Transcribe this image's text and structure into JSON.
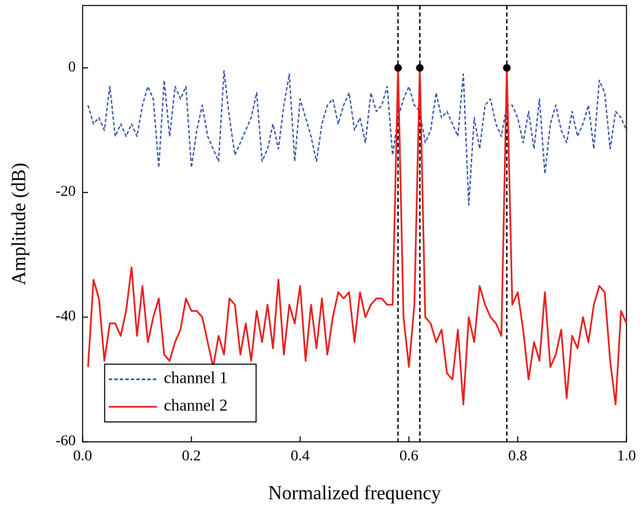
{
  "chart_data": {
    "type": "line",
    "xlabel": "Normalized frequency",
    "ylabel": "Amplitude (dB)",
    "x": [
      0.01,
      0.02,
      0.03,
      0.04,
      0.05,
      0.06,
      0.07,
      0.08,
      0.09,
      0.1,
      0.11,
      0.12,
      0.13,
      0.14,
      0.15,
      0.16,
      0.17,
      0.18,
      0.19,
      0.2,
      0.21,
      0.22,
      0.23,
      0.24,
      0.25,
      0.26,
      0.27,
      0.28,
      0.29,
      0.3,
      0.31,
      0.32,
      0.33,
      0.34,
      0.35,
      0.36,
      0.37,
      0.38,
      0.39,
      0.4,
      0.41,
      0.42,
      0.43,
      0.44,
      0.45,
      0.46,
      0.47,
      0.48,
      0.49,
      0.5,
      0.51,
      0.52,
      0.53,
      0.54,
      0.55,
      0.56,
      0.57,
      0.58,
      0.59,
      0.6,
      0.61,
      0.62,
      0.63,
      0.64,
      0.65,
      0.66,
      0.67,
      0.68,
      0.69,
      0.7,
      0.71,
      0.72,
      0.73,
      0.74,
      0.75,
      0.76,
      0.77,
      0.78,
      0.79,
      0.8,
      0.81,
      0.82,
      0.83,
      0.84,
      0.85,
      0.86,
      0.87,
      0.88,
      0.89,
      0.9,
      0.91,
      0.92,
      0.93,
      0.94,
      0.95,
      0.96,
      0.97,
      0.98,
      0.99,
      1.0
    ],
    "series": [
      {
        "name": "channel 1",
        "color": "#3b5aa8",
        "dashed": true,
        "values": [
          -6,
          -9,
          -8,
          -10,
          -3,
          -11,
          -9,
          -11,
          -9,
          -11,
          -6,
          -3,
          -5,
          -16,
          -2,
          -11,
          -3,
          -5,
          -3,
          -16,
          -10,
          -6,
          -11,
          -13,
          -15,
          -0.5,
          -8,
          -14,
          -12,
          -10,
          -8,
          -4,
          -15,
          -13,
          -9,
          -13,
          -6,
          -1,
          -15,
          -5,
          -8,
          -11,
          -15,
          -9,
          -6,
          -5,
          -9,
          -6,
          -4,
          -10,
          -8,
          -12,
          -4,
          -7,
          -6,
          -3,
          -14,
          -8,
          -5,
          -3,
          -6,
          -7,
          -12,
          -10,
          -4,
          -8,
          -7,
          -9,
          -11,
          -1,
          -22,
          -8,
          -13,
          -6,
          -5,
          -9,
          -11,
          -6,
          -6,
          -8,
          -12,
          -7,
          -13,
          -5,
          -17,
          -9,
          -6,
          -10,
          -12,
          -7,
          -11,
          -9,
          -6,
          -13,
          -2,
          -4,
          -13,
          -7,
          -8,
          -10
        ]
      },
      {
        "name": "channel 2",
        "color": "#e8211f",
        "dashed": false,
        "values": [
          -48,
          -34,
          -37,
          -47,
          -41,
          -41,
          -43,
          -39,
          -32,
          -43,
          -35,
          -44,
          -40,
          -37,
          -46,
          -47,
          -44,
          -42,
          -37,
          -39,
          -39,
          -40,
          -44,
          -48,
          -43,
          -46,
          -37,
          -38,
          -46,
          -41,
          -47,
          -39,
          -44,
          -38,
          -45,
          -34,
          -46,
          -38,
          -41,
          -35,
          -47,
          -38,
          -45,
          -37,
          -46,
          -40,
          -36,
          -37,
          -36,
          -44,
          -36,
          -40,
          -38,
          -37,
          -37,
          -38,
          -38,
          0,
          -40,
          -48,
          -38,
          0,
          -40,
          -41,
          -44,
          -42,
          -49,
          -50,
          -42,
          -54,
          -40,
          -44,
          -35,
          -38,
          -40,
          -41,
          -43,
          0,
          -38,
          -36,
          -42,
          -50,
          -44,
          -47,
          -36,
          -48,
          -46,
          -42,
          -53,
          -43,
          -45,
          -40,
          -44,
          -38,
          -35,
          -36,
          -47,
          -54,
          -39,
          -41
        ]
      }
    ],
    "peaks": {
      "x": [
        0.58,
        0.62,
        0.78
      ],
      "values": [
        0,
        0,
        0
      ]
    },
    "xlim": [
      0,
      1
    ],
    "xticks": [
      {
        "value": 0,
        "label": "0.0"
      },
      0.2,
      0.4,
      0.6,
      0.8,
      {
        "value": 1,
        "label": "1.0"
      }
    ],
    "ylim": [
      -60,
      10
    ],
    "yticks": [
      -60,
      -40,
      -20,
      0
    ],
    "legend": "lower left"
  }
}
